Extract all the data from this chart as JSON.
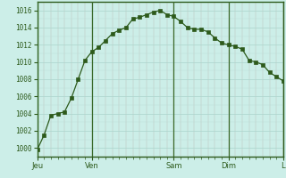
{
  "bg_color": "#cceee8",
  "line_color": "#2d5a1b",
  "marker_color": "#2d5a1b",
  "grid_color_major": "#aad4cc",
  "grid_color_minor": "#bbddd8",
  "x_tick_labels": [
    "Jeu",
    "Ven",
    "Sam",
    "Dim",
    "L"
  ],
  "x_tick_positions": [
    0,
    8,
    20,
    28,
    36
  ],
  "ylim": [
    999,
    1017
  ],
  "yticks": [
    1000,
    1002,
    1004,
    1006,
    1008,
    1010,
    1012,
    1014,
    1016
  ],
  "data_x": [
    0,
    1,
    2,
    3,
    4,
    5,
    6,
    7,
    8,
    9,
    10,
    11,
    12,
    13,
    14,
    15,
    16,
    17,
    18,
    19,
    20,
    21,
    22,
    23,
    24,
    25,
    26,
    27,
    28,
    29,
    30,
    31,
    32,
    33,
    34,
    35,
    36
  ],
  "data_y": [
    999.8,
    1001.5,
    1003.8,
    1004.0,
    1004.2,
    1005.8,
    1008.0,
    1010.2,
    1011.2,
    1011.7,
    1012.5,
    1013.3,
    1013.7,
    1014.0,
    1015.0,
    1015.2,
    1015.5,
    1015.8,
    1016.0,
    1015.5,
    1015.3,
    1014.7,
    1014.0,
    1013.8,
    1013.8,
    1013.5,
    1012.8,
    1012.2,
    1012.0,
    1011.8,
    1011.5,
    1010.2,
    1010.0,
    1009.7,
    1008.8,
    1008.3,
    1007.8
  ],
  "tick_color": "#2d5a1b",
  "spine_color": "#2d5a1b",
  "vline_color": "#3a6a2a",
  "red_vline_color": "#cc6666"
}
